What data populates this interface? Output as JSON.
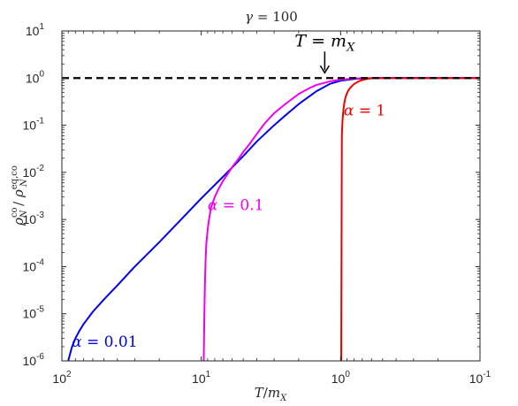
{
  "chart_data": {
    "type": "line",
    "title": "γ = 100",
    "xlabel": "T/m_X",
    "ylabel": "ρ_N^co / ρ_N^eq,co",
    "x_scale": "log",
    "y_scale": "log",
    "x_reversed": true,
    "xlim": [
      100,
      0.1
    ],
    "ylim": [
      1e-06,
      10
    ],
    "x_ticks": [
      {
        "value": 100,
        "label": "10^2"
      },
      {
        "value": 10,
        "label": "10^1"
      },
      {
        "value": 1,
        "label": "10^0"
      },
      {
        "value": 0.1,
        "label": "10^-1"
      }
    ],
    "y_ticks": [
      {
        "value": 1e-06,
        "label": "10^-6"
      },
      {
        "value": 1e-05,
        "label": "10^-5"
      },
      {
        "value": 0.0001,
        "label": "10^-4"
      },
      {
        "value": 0.001,
        "label": "10^-3"
      },
      {
        "value": 0.01,
        "label": "10^-2"
      },
      {
        "value": 0.1,
        "label": "10^-1"
      },
      {
        "value": 1,
        "label": "10^0"
      },
      {
        "value": 10,
        "label": "10^1"
      }
    ],
    "grid": false,
    "series": [
      {
        "name": "α = 0.01",
        "color": "#0000ee",
        "x": [
          90,
          85,
          80,
          75,
          70,
          60,
          50,
          40,
          30,
          20,
          15,
          10,
          7,
          5,
          4,
          3,
          2.5,
          2,
          1.5,
          1.2,
          1,
          0.8,
          0.7,
          0.6,
          0.5,
          0.3,
          0.1
        ],
        "y": [
          1e-06,
          1.9e-06,
          3e-06,
          4.3e-06,
          6e-06,
          1.1e-05,
          2e-05,
          4e-05,
          0.0001,
          0.00033,
          0.0008,
          0.0028,
          0.008,
          0.022,
          0.045,
          0.1,
          0.16,
          0.28,
          0.52,
          0.75,
          0.88,
          0.96,
          0.98,
          0.99,
          1.0,
          1.0,
          1.0
        ]
      },
      {
        "name": "α = 0.1",
        "color": "#ee00ee",
        "x": [
          9.6,
          9.5,
          9.4,
          9.3,
          9.2,
          9.0,
          8.8,
          8.5,
          8,
          7.5,
          7,
          6.5,
          6,
          5.5,
          5,
          4.5,
          4,
          3.5,
          3,
          2.5,
          2,
          1.7,
          1.5,
          1.2,
          1,
          0.8,
          0.6,
          0.5,
          0.3,
          0.1
        ],
        "y": [
          1e-06,
          1e-05,
          5e-05,
          0.00015,
          0.0003,
          0.0006,
          0.001,
          0.0018,
          0.003,
          0.0045,
          0.0065,
          0.009,
          0.013,
          0.018,
          0.027,
          0.04,
          0.065,
          0.11,
          0.18,
          0.28,
          0.46,
          0.6,
          0.71,
          0.85,
          0.93,
          0.98,
          1.0,
          1.0,
          1.0,
          1.0
        ]
      },
      {
        "name": "α = 1",
        "color": "#ee0000",
        "x": [
          0.99,
          0.98,
          0.97,
          0.96,
          0.95,
          0.94,
          0.93,
          0.92,
          0.9,
          0.88,
          0.85,
          0.82,
          0.8,
          0.75,
          0.7,
          0.65,
          0.6,
          0.5,
          0.3,
          0.1
        ],
        "y": [
          1e-06,
          0.06,
          0.12,
          0.18,
          0.24,
          0.3,
          0.35,
          0.4,
          0.48,
          0.55,
          0.63,
          0.7,
          0.75,
          0.84,
          0.91,
          0.96,
          0.99,
          1.0,
          1.0,
          1.0
        ]
      }
    ],
    "reference_line": {
      "y": 1,
      "style": "dashed",
      "color": "#000000"
    },
    "annotations": {
      "series_labels": [
        {
          "text_var": "α",
          "text_value": "0.01",
          "x": 85,
          "y": 2e-06,
          "color": "#0000ee"
        },
        {
          "text_var": "α",
          "text_value": "0.1",
          "x": 9.0,
          "y": 0.0016,
          "color": "#ee00ee"
        },
        {
          "text_var": "α",
          "text_value": "1",
          "x": 0.95,
          "y": 0.16,
          "color": "#ee0000"
        }
      ],
      "marker": {
        "text_var_left": "T",
        "text_var_right": "m",
        "text_sub": "X",
        "points_to_x": 1.3,
        "points_to_y": 1
      }
    }
  }
}
